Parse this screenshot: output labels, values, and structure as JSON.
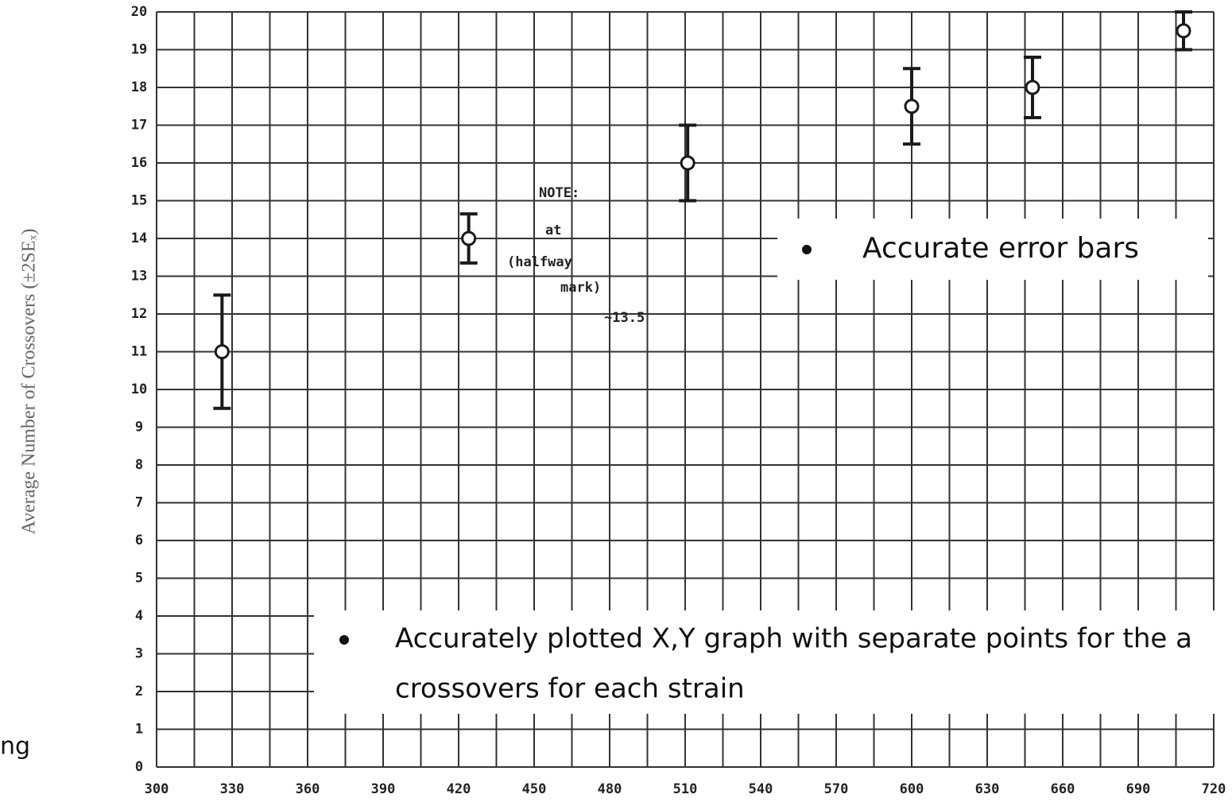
{
  "chart_data": {
    "type": "scatter",
    "y_label": "Average Number of Crossovers (±2SEₓ)",
    "x": [
      326,
      424,
      511,
      600,
      648,
      708
    ],
    "values": [
      11,
      14,
      16,
      17.5,
      18,
      19.5
    ],
    "errors": [
      1.5,
      0.65,
      1,
      1,
      0.8,
      0.5
    ],
    "color": "#1a1a1a",
    "xlim": [
      300,
      720
    ],
    "ylim": [
      0,
      20
    ],
    "xticks": [
      300,
      330,
      360,
      390,
      420,
      450,
      480,
      510,
      540,
      570,
      600,
      630,
      660,
      690,
      720
    ],
    "yticks": [
      0,
      1,
      2,
      3,
      4,
      5,
      6,
      7,
      8,
      9,
      10,
      11,
      12,
      13,
      14,
      15,
      16,
      17,
      18,
      19,
      20
    ],
    "grid": true,
    "annotations": [
      "NOTE:",
      "at",
      "(halfway",
      "mark)",
      "~13.5"
    ]
  },
  "callouts": [
    "Accurate error bars",
    "Accurately plotted X,Y graph with separate points for the a",
    "crossovers for each strain"
  ],
  "side_text": "ng"
}
